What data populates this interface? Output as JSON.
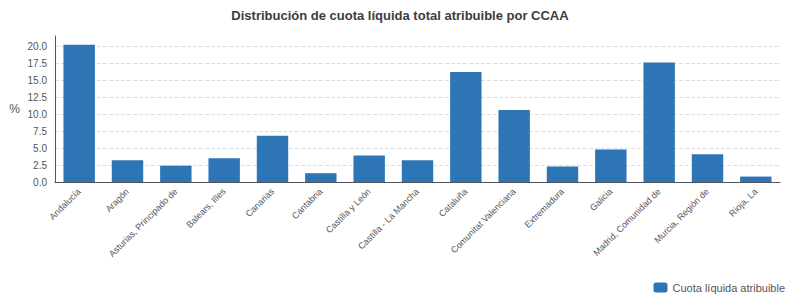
{
  "chart_data": {
    "type": "bar",
    "title": "Distribución de cuota líquida total atribuible por CCAA",
    "categories": [
      "Andalucía",
      "Aragón",
      "Asturias, Principado de",
      "Balears, Illes",
      "Canarias",
      "Cantabria",
      "Castilla y León",
      "Castilla - La Mancha",
      "Cataluña",
      "Comunitat Valenciana",
      "Extremadura",
      "Galicia",
      "Madrid, Comunidad de",
      "Murcia, Región de",
      "Rioja, La"
    ],
    "series": [
      {
        "name": "Cuota líquida atribuible",
        "color": "#2e75b6",
        "values": [
          20.2,
          3.2,
          2.4,
          3.5,
          6.8,
          1.3,
          3.9,
          3.2,
          16.2,
          10.6,
          2.3,
          4.8,
          17.6,
          4.1,
          0.8
        ]
      }
    ],
    "ylabel": "%",
    "ylim": [
      0,
      21.5
    ],
    "yticks": [
      {
        "value": 0,
        "label": "0.0"
      },
      2.5,
      {
        "value": 5,
        "label": "5.0"
      },
      7.5,
      {
        "value": 10,
        "label": "10.0"
      },
      12.5,
      {
        "value": 15,
        "label": "15.0"
      },
      17.5,
      {
        "value": 20,
        "label": "20.0"
      }
    ],
    "grid": true,
    "legend": "lower right"
  }
}
